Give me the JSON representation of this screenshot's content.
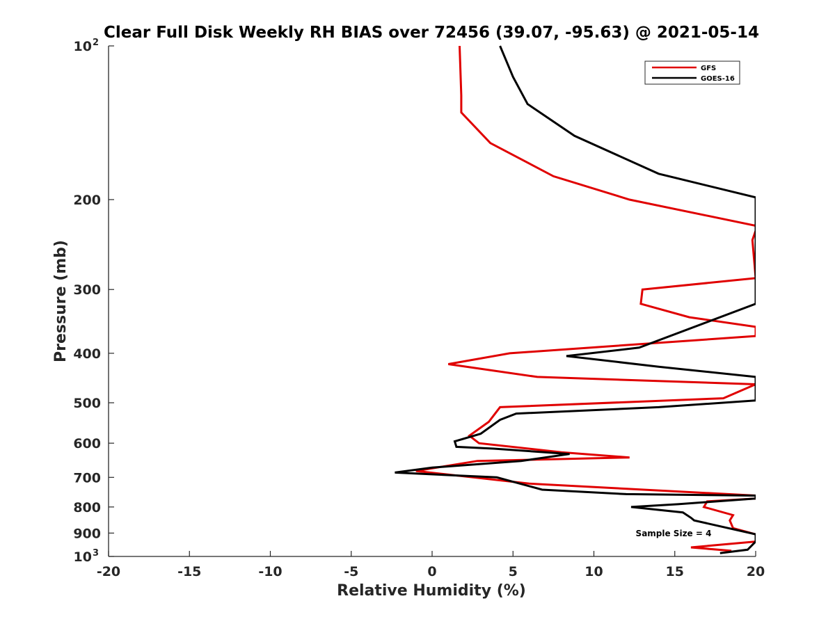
{
  "chart_data": {
    "type": "line",
    "title": "Clear Full Disk Weekly RH BIAS over 72456 (39.07, -95.63) @ 2021-05-14",
    "xlabel": "Relative Humidity (%)",
    "ylabel": "Pressure (mb)",
    "xlim": [
      -20,
      20
    ],
    "ylim": [
      100,
      1000
    ],
    "yscale": "log",
    "y_reversed": true,
    "grid": false,
    "x_ticks": [
      -20,
      -15,
      -10,
      -5,
      0,
      5,
      10,
      15,
      20
    ],
    "x_tick_labels": [
      "-20",
      "-15",
      "-10",
      "-5",
      "0",
      "5",
      "10",
      "15",
      "20"
    ],
    "y_ticks": [
      200,
      300,
      400,
      500,
      600,
      700,
      800,
      900
    ],
    "y_tick_labels": [
      "200",
      "300",
      "400",
      "500",
      "600",
      "700",
      "800",
      "900"
    ],
    "y_ends": [
      {
        "value": 100,
        "base": "10",
        "exp": "2"
      },
      {
        "value": 1000,
        "base": "10",
        "exp": "3"
      }
    ],
    "legend_position": "top-right",
    "annotation": "Sample Size = 4",
    "series": [
      {
        "name": "GFS",
        "color": "#e00000",
        "x": [
          1.7,
          1.8,
          1.8,
          3.6,
          7.5,
          12.2,
          20.0,
          20.0,
          19.8,
          20.0,
          13.0,
          12.9,
          15.9,
          20.0,
          20.0,
          4.8,
          1.0,
          6.5,
          20.0,
          20.0,
          18.0,
          4.2,
          3.5,
          2.3,
          2.9,
          8.0,
          12.2,
          2.8,
          -1.0,
          6.0,
          20.0,
          20.0,
          17.0,
          16.8,
          18.6,
          18.4,
          18.6,
          20.0,
          20.0,
          16.0,
          18.5
        ],
        "y": [
          100,
          125,
          135,
          155,
          180,
          200,
          225,
          230,
          240,
          285,
          300,
          320,
          340,
          355,
          370,
          400,
          420,
          445,
          460,
          460,
          490,
          510,
          545,
          580,
          600,
          625,
          640,
          650,
          680,
          720,
          760,
          770,
          780,
          800,
          830,
          850,
          880,
          905,
          935,
          960,
          975
        ]
      },
      {
        "name": "GOES-16",
        "color": "#000000",
        "x": [
          4.2,
          5.0,
          5.9,
          8.8,
          14.0,
          20.0,
          20.0,
          12.8,
          8.3,
          14.0,
          20.0,
          20.0,
          14.0,
          5.2,
          4.2,
          3.0,
          1.4,
          1.5,
          3.8,
          8.5,
          5.5,
          0.0,
          -2.3,
          4.0,
          6.8,
          12.0,
          20.0,
          20.0,
          15.2,
          12.3,
          15.5,
          16.0,
          16.2,
          20.0,
          20.0,
          19.5,
          17.8
        ],
        "y": [
          100,
          115,
          130,
          150,
          178,
          198,
          320,
          390,
          405,
          425,
          445,
          495,
          510,
          525,
          540,
          575,
          595,
          610,
          615,
          630,
          650,
          670,
          685,
          700,
          740,
          755,
          760,
          770,
          790,
          800,
          820,
          840,
          850,
          905,
          935,
          970,
          985
        ]
      }
    ]
  }
}
